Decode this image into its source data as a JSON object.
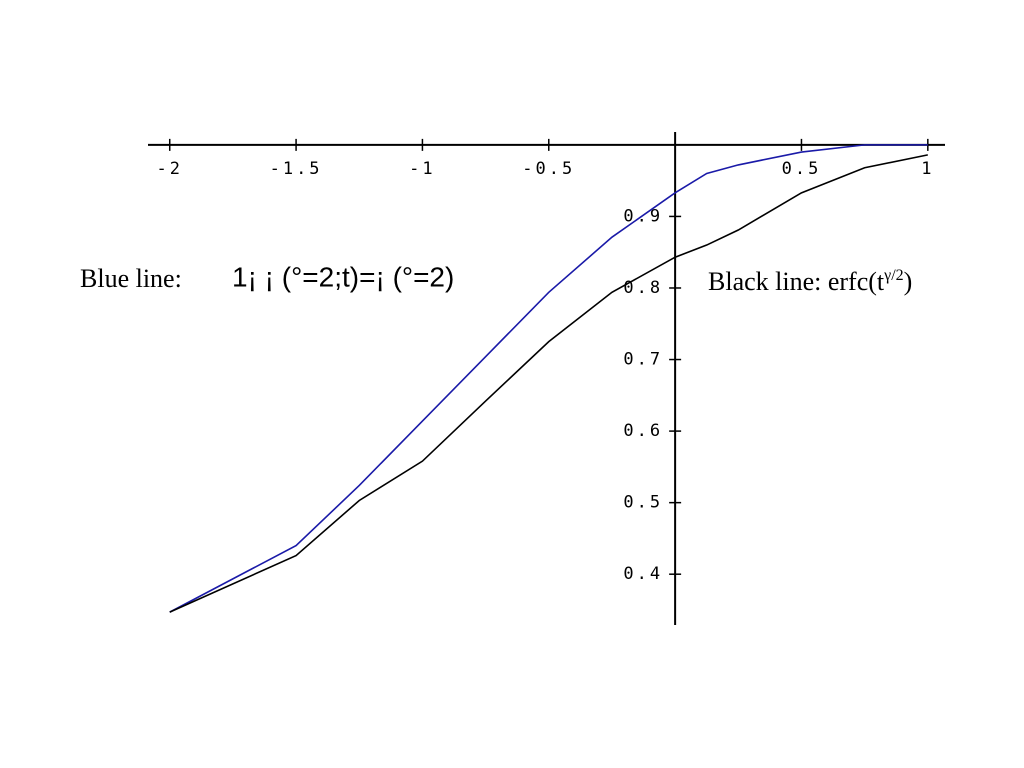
{
  "chart_data": {
    "type": "line",
    "x": [
      -2,
      -1.5,
      -1.25,
      -1,
      -0.75,
      -0.5,
      -0.25,
      0,
      0.125,
      0.25,
      0.5,
      0.75,
      1
    ],
    "series": [
      {
        "name": "Blue line:",
        "formula": "1¡ ¡ (°=2;t)=¡ (°=2)",
        "color": "#1a1aa8",
        "values": [
          0.347,
          0.44,
          0.524,
          0.614,
          0.704,
          0.794,
          0.871,
          0.933,
          0.96,
          0.972,
          0.99,
          1.0,
          1.0
        ]
      },
      {
        "name": "Black line: erfc(t",
        "name_sup": "γ/2",
        "name_end": ")",
        "color": "#000000",
        "values": [
          0.347,
          0.426,
          0.503,
          0.558,
          0.642,
          0.725,
          0.794,
          0.843,
          0.86,
          0.881,
          0.933,
          0.968,
          0.986
        ]
      }
    ],
    "xlim": [
      -2.086,
      1.068
    ],
    "ylim": [
      0.329,
      1.018
    ],
    "xticks": [
      -2,
      -1.5,
      -1,
      -0.5,
      0.5,
      1
    ],
    "yticks": [
      0.4,
      0.5,
      0.6,
      0.7,
      0.8,
      0.9
    ],
    "axis_origin": [
      0,
      1
    ]
  }
}
